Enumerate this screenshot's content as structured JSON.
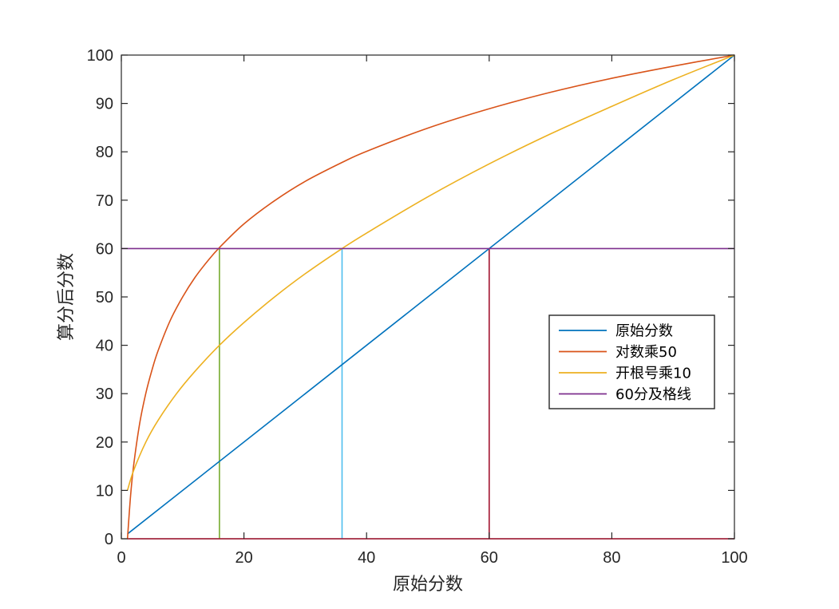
{
  "chart_data": {
    "type": "line",
    "xlabel": "原始分数",
    "ylabel": "算分后分数",
    "xlim": [
      0,
      100
    ],
    "ylim": [
      0,
      100
    ],
    "x_ticks": [
      0,
      20,
      40,
      60,
      80,
      100
    ],
    "y_ticks": [
      0,
      10,
      20,
      30,
      40,
      50,
      60,
      70,
      80,
      90,
      100
    ],
    "x_tick_labels": [
      "0",
      "20",
      "40",
      "60",
      "80",
      "100"
    ],
    "y_tick_labels": [
      "0",
      "10",
      "20",
      "30",
      "40",
      "50",
      "60",
      "70",
      "80",
      "90",
      "100"
    ],
    "grid": false,
    "legend_position": "right-middle",
    "series": [
      {
        "name": "原始分数",
        "color": "#0072BD",
        "x": [
          1,
          100
        ],
        "y": [
          1,
          100
        ]
      },
      {
        "name": "对数乘50",
        "color": "#D95319",
        "x": [
          1,
          1.5,
          2,
          3,
          4,
          5,
          6,
          8,
          10,
          12,
          14,
          16,
          20,
          25,
          30,
          36,
          40,
          50,
          60,
          70,
          80,
          90,
          100
        ],
        "y": [
          0,
          8.8,
          15.1,
          23.9,
          30.1,
          34.9,
          38.9,
          45.2,
          50,
          54,
          57.3,
          60.2,
          65.1,
          69.9,
          73.9,
          77.8,
          80.1,
          84.9,
          88.9,
          92.3,
          95.2,
          97.7,
          100
        ]
      },
      {
        "name": "开根号乘10",
        "color": "#EDB120",
        "x": [
          1,
          2,
          4,
          6,
          9,
          12,
          16,
          20,
          25,
          30,
          36,
          40,
          50,
          60,
          70,
          80,
          90,
          100
        ],
        "y": [
          10,
          14.1,
          20,
          24.5,
          30,
          34.6,
          40,
          44.7,
          50,
          54.8,
          60,
          63.2,
          70.7,
          77.5,
          83.7,
          89.4,
          94.9,
          100
        ]
      },
      {
        "name": "60分及格线",
        "color": "#7E2F8E",
        "x": [
          0,
          100
        ],
        "y": [
          60,
          60
        ]
      }
    ],
    "reference_lines": [
      {
        "color": "#77AC30",
        "x": [
          16,
          16
        ],
        "y": [
          0,
          60
        ]
      },
      {
        "color": "#4DBEEE",
        "x": [
          36,
          36
        ],
        "y": [
          0,
          60
        ]
      },
      {
        "color": "#A2142F",
        "x": [
          60,
          60
        ],
        "y": [
          0,
          60
        ]
      },
      {
        "color": "#A2142F",
        "x": [
          1,
          100
        ],
        "y": [
          0,
          0
        ]
      }
    ]
  }
}
